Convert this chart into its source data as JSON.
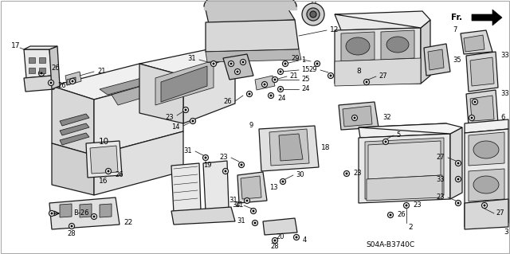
{
  "bg_color": "#ffffff",
  "border_color": "#cccccc",
  "diagram_code": "S04A-B3740C",
  "fr_label": "Fr.",
  "fig_width": 6.4,
  "fig_height": 3.19,
  "dpi": 100,
  "line_color": "#1a1a1a",
  "gray_fill": "#c8c8c8",
  "light_gray": "#e8e8e8",
  "mid_gray": "#b0b0b0"
}
